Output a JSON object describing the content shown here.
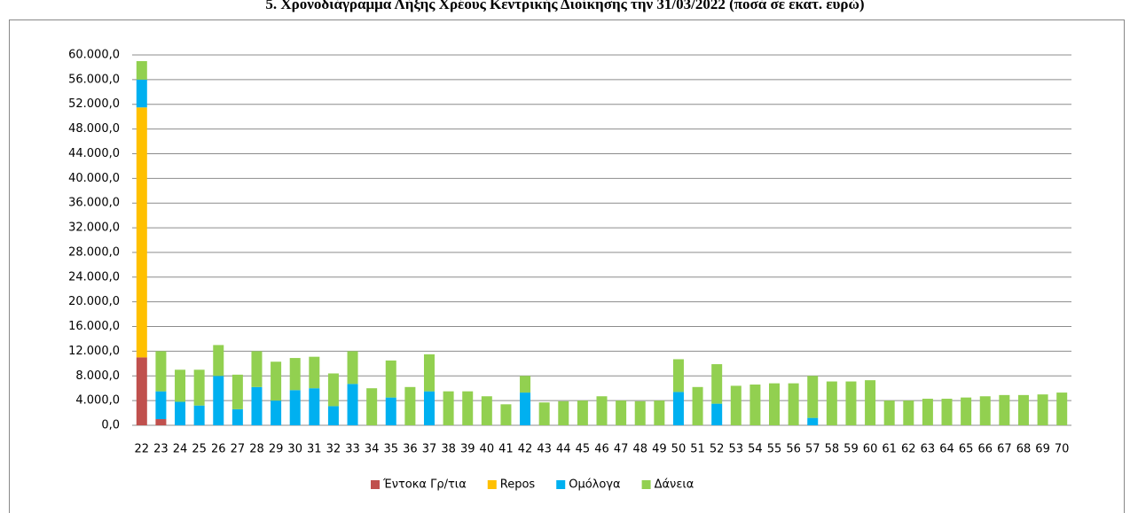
{
  "chart_data": {
    "type": "bar",
    "stacked": true,
    "title": "5. Χρονοδιάγραμμα Λήξης Χρέους Κεντρικής Διοίκησης την 31/03/2022 (ποσά σε εκατ. ευρώ)",
    "categories": [
      "22",
      "23",
      "24",
      "25",
      "26",
      "27",
      "28",
      "29",
      "30",
      "31",
      "32",
      "33",
      "34",
      "35",
      "36",
      "37",
      "38",
      "39",
      "40",
      "41",
      "42",
      "43",
      "44",
      "45",
      "46",
      "47",
      "48",
      "49",
      "50",
      "51",
      "52",
      "53",
      "54",
      "55",
      "56",
      "57",
      "58",
      "59",
      "60",
      "61",
      "62",
      "63",
      "64",
      "65",
      "66",
      "67",
      "68",
      "69",
      "70"
    ],
    "series": [
      {
        "name": "Έντοκα Γρ/τια",
        "color": "#c0504d",
        "values": [
          11000,
          1000,
          0,
          0,
          0,
          0,
          0,
          0,
          0,
          0,
          0,
          0,
          0,
          0,
          0,
          0,
          0,
          0,
          0,
          0,
          0,
          0,
          0,
          0,
          0,
          0,
          0,
          0,
          0,
          0,
          0,
          0,
          0,
          0,
          0,
          0,
          0,
          0,
          0,
          0,
          0,
          0,
          0,
          0,
          0,
          0,
          0,
          0,
          0
        ]
      },
      {
        "name": "Repos",
        "color": "#ffc000",
        "values": [
          40500,
          0,
          0,
          0,
          0,
          0,
          0,
          0,
          0,
          0,
          0,
          0,
          0,
          0,
          0,
          0,
          0,
          0,
          0,
          0,
          0,
          0,
          0,
          0,
          0,
          0,
          0,
          0,
          0,
          0,
          0,
          0,
          0,
          0,
          0,
          0,
          0,
          0,
          0,
          0,
          0,
          0,
          0,
          0,
          0,
          0,
          0,
          0,
          0
        ]
      },
      {
        "name": "Ομόλογα",
        "color": "#00b0f0",
        "values": [
          4500,
          4500,
          3800,
          3200,
          8000,
          2600,
          6200,
          4000,
          5700,
          6000,
          3100,
          6700,
          0,
          4500,
          0,
          5500,
          0,
          0,
          0,
          0,
          5300,
          0,
          0,
          0,
          0,
          0,
          0,
          0,
          5400,
          0,
          3500,
          0,
          0,
          0,
          0,
          1200,
          0,
          0,
          0,
          0,
          0,
          0,
          0,
          0,
          0,
          0,
          0,
          0,
          0
        ]
      },
      {
        "name": "Δάνεια",
        "color": "#92d050",
        "values": [
          3000,
          6500,
          5200,
          5800,
          5000,
          5600,
          5800,
          6300,
          5200,
          5100,
          5300,
          5300,
          6000,
          6000,
          6200,
          6000,
          5500,
          5500,
          4700,
          3400,
          2700,
          3700,
          3900,
          4000,
          4700,
          4000,
          3900,
          4000,
          5300,
          6200,
          6400,
          6400,
          6600,
          6800,
          6800,
          6800,
          7100,
          7100,
          7300,
          4000,
          4000,
          4300,
          4300,
          4500,
          4700,
          4900,
          4900,
          5000,
          5300
        ]
      }
    ],
    "ylim": [
      0,
      60000
    ],
    "yticks": [
      {
        "value": 0,
        "label": "0,0"
      },
      {
        "value": 4000,
        "label": "4.000,0"
      },
      {
        "value": 8000,
        "label": "8.000,0"
      },
      {
        "value": 12000,
        "label": "12.000,0"
      },
      {
        "value": 16000,
        "label": "16.000,0"
      },
      {
        "value": 20000,
        "label": "20.000,0"
      },
      {
        "value": 24000,
        "label": "24.000,0"
      },
      {
        "value": 28000,
        "label": "28.000,0"
      },
      {
        "value": 32000,
        "label": "32.000,0"
      },
      {
        "value": 36000,
        "label": "36.000,0"
      },
      {
        "value": 40000,
        "label": "40.000,0"
      },
      {
        "value": 44000,
        "label": "44.000,0"
      },
      {
        "value": 48000,
        "label": "48.000,0"
      },
      {
        "value": 52000,
        "label": "52.000,0"
      },
      {
        "value": 56000,
        "label": "56.000,0"
      },
      {
        "value": 60000,
        "label": "60.000,0"
      }
    ],
    "grid": true,
    "legend": "bottom"
  }
}
